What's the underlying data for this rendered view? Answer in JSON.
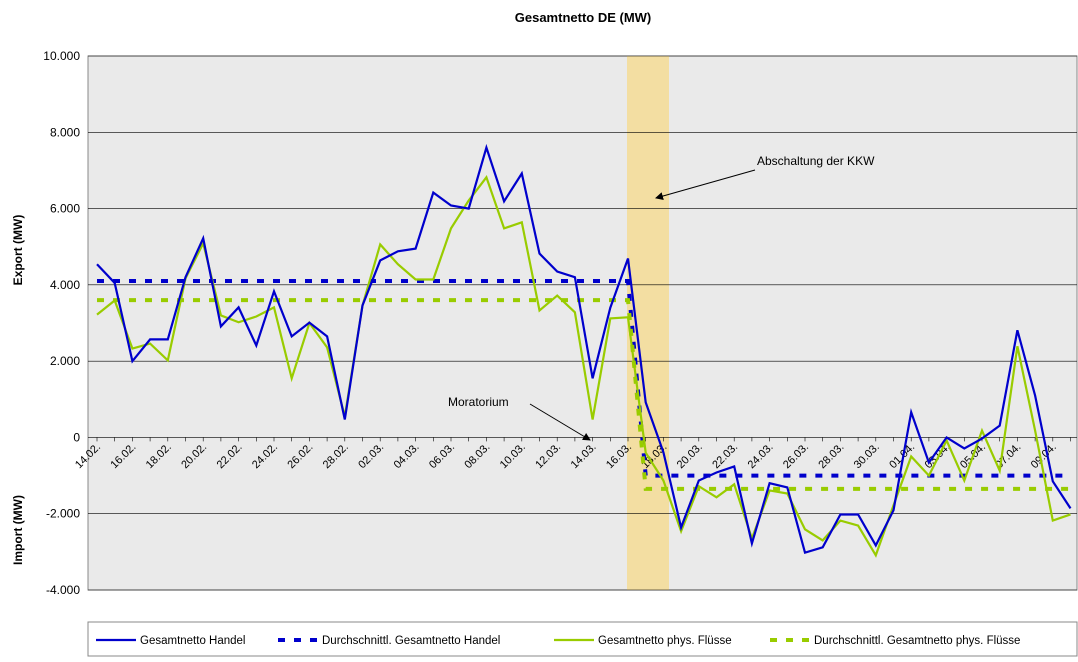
{
  "chart_data": {
    "type": "line",
    "title": "Gesamtnetto DE (MW)",
    "y_label_top": "Export (MW)",
    "y_label_bottom": "Import (MW)",
    "annotations": [
      "Abschaltung der KKW",
      "Moratorium"
    ],
    "categories": [
      "14.02.",
      null,
      "16.02.",
      null,
      "18.02.",
      null,
      "20.02.",
      null,
      "22.02.",
      null,
      "24.02.",
      null,
      "26.02.",
      null,
      "28.02.",
      null,
      "02.03.",
      null,
      "04.03.",
      null,
      "06.03.",
      null,
      "08.03.",
      null,
      "10.03.",
      null,
      "12.03.",
      null,
      "14.03.",
      null,
      "16.03.",
      null,
      "18.03.",
      null,
      "20.03.",
      null,
      "22.03.",
      null,
      "24.03.",
      null,
      "26.03.",
      null,
      "28.03.",
      null,
      "30.03.",
      null,
      "01.04.",
      null,
      "03.04.",
      null,
      "05.04.",
      null,
      "07.04.",
      null,
      "09.04.",
      null
    ],
    "series": [
      {
        "name": "Gesamtnetto Handel",
        "color": "#0000cc",
        "dash": false,
        "values": [
          4540,
          4050,
          2000,
          2570,
          2570,
          4200,
          5220,
          2910,
          3410,
          2410,
          3830,
          2650,
          3010,
          2650,
          470,
          3460,
          4640,
          4880,
          4950,
          6420,
          6080,
          6000,
          7600,
          6190,
          6920,
          4820,
          4350,
          4200,
          1550,
          3400,
          4690,
          920,
          -390,
          -2360,
          -1130,
          -920,
          -760,
          -2780,
          -1200,
          -1310,
          -3020,
          -2880,
          -2020,
          -2020,
          -2830,
          -1910,
          660,
          -660,
          0,
          -290,
          -30,
          310,
          2810,
          1100,
          -1150,
          -1860
        ]
      },
      {
        "name": "Durchschnittl. Gesamtnetto Handel",
        "color": "#0000cc",
        "dash": true,
        "values": [
          4100,
          4100,
          4100,
          4100,
          4100,
          4100,
          4100,
          4100,
          4100,
          4100,
          4100,
          4100,
          4100,
          4100,
          4100,
          4100,
          4100,
          4100,
          4100,
          4100,
          4100,
          4100,
          4100,
          4100,
          4100,
          4100,
          4100,
          4100,
          4100,
          4100,
          4100,
          -1000,
          -1000,
          -1000,
          -1000,
          -1000,
          -1000,
          -1000,
          -1000,
          -1000,
          -1000,
          -1000,
          -1000,
          -1000,
          -1000,
          -1000,
          -1000,
          -1000,
          -1000,
          -1000,
          -1000,
          -1000,
          -1000,
          -1000,
          -1000,
          -1000
        ]
      },
      {
        "name": "Gesamtnetto phys. Flüsse",
        "color": "#99cc00",
        "dash": false,
        "values": [
          3220,
          3590,
          2330,
          2460,
          2020,
          4170,
          5090,
          3200,
          3020,
          3170,
          3410,
          1550,
          3000,
          2360,
          550,
          3460,
          5060,
          4540,
          4140,
          4140,
          5480,
          6210,
          6820,
          5480,
          5640,
          3330,
          3720,
          3280,
          470,
          3120,
          3150,
          -400,
          -1130,
          -2460,
          -1280,
          -1570,
          -1230,
          -2650,
          -1390,
          -1470,
          -2410,
          -2700,
          -2180,
          -2310,
          -3090,
          -1780,
          -500,
          -1000,
          -80,
          -1130,
          180,
          -870,
          2390,
          180,
          -2180,
          -2020
        ]
      },
      {
        "name": "Durchschnittl. Gesamtnetto phys. Flüsse",
        "color": "#99cc00",
        "dash": true,
        "values": [
          3600,
          3600,
          3600,
          3600,
          3600,
          3600,
          3600,
          3600,
          3600,
          3600,
          3600,
          3600,
          3600,
          3600,
          3600,
          3600,
          3600,
          3600,
          3600,
          3600,
          3600,
          3600,
          3600,
          3600,
          3600,
          3600,
          3600,
          3600,
          3600,
          3600,
          3600,
          -1350,
          -1350,
          -1350,
          -1350,
          -1350,
          -1350,
          -1350,
          -1350,
          -1350,
          -1350,
          -1350,
          -1350,
          -1350,
          -1350,
          -1350,
          -1350,
          -1350,
          -1350,
          -1350,
          -1350,
          -1350,
          -1350,
          -1350,
          -1350,
          -1350
        ]
      }
    ],
    "ylim": [
      -4000,
      10000
    ],
    "yticks": [
      {
        "value": -4000,
        "label": "-4.000"
      },
      {
        "value": -2000,
        "label": "-2.000"
      },
      0,
      {
        "value": 2000,
        "label": "2.000"
      },
      {
        "value": 4000,
        "label": "4.000"
      },
      {
        "value": 6000,
        "label": "6.000"
      },
      {
        "value": 8000,
        "label": "8.000"
      },
      {
        "value": 10000,
        "label": "10.000"
      }
    ],
    "grid": true,
    "legend": "bottom"
  }
}
